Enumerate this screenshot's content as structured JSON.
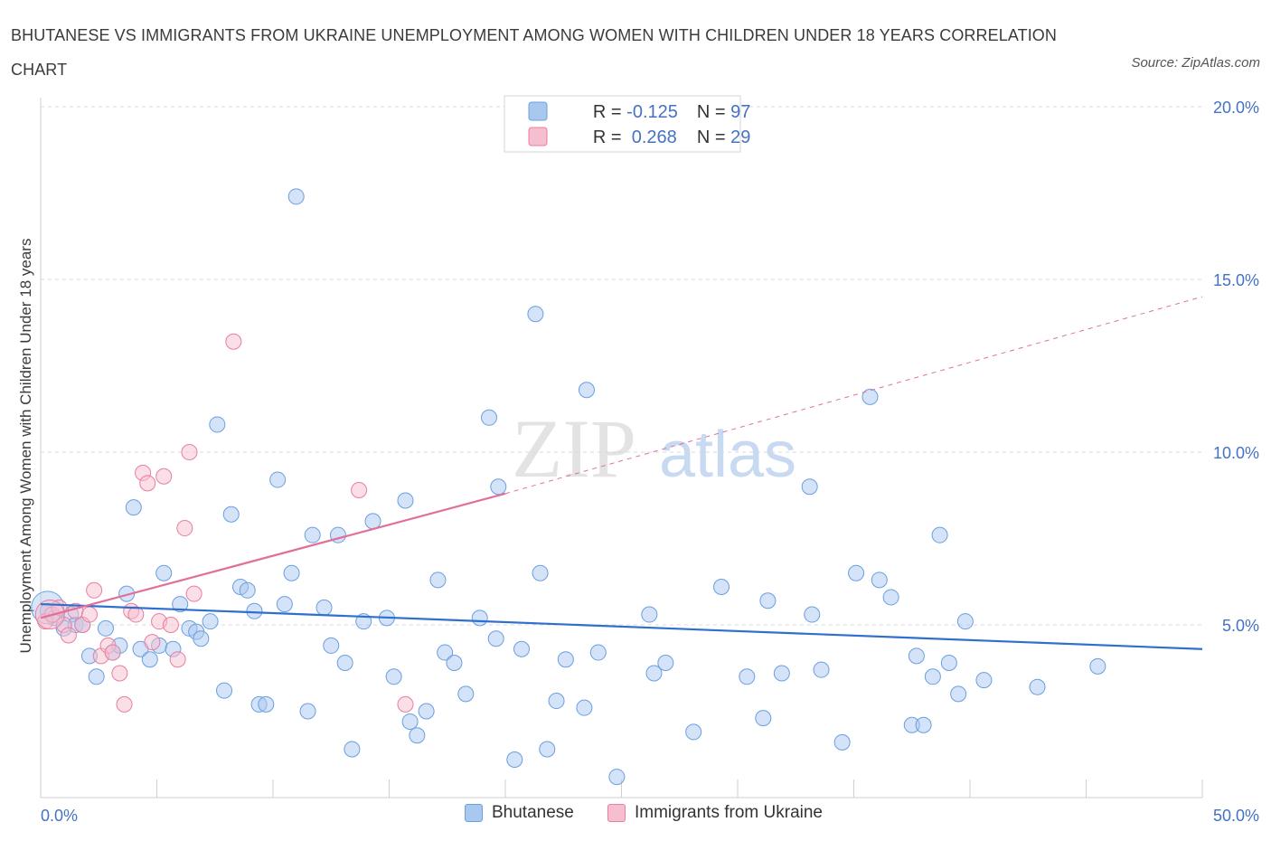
{
  "title": "BHUTANESE VS IMMIGRANTS FROM UKRAINE UNEMPLOYMENT AMONG WOMEN WITH CHILDREN UNDER 18 YEARS CORRELATION CHART",
  "source": "Source: ZipAtlas.com",
  "colors": {
    "blue_fill": "#a9c8f0",
    "blue_stroke": "#6a9fe0",
    "blue_line": "#2f6fce",
    "pink_fill": "#f6bfd0",
    "pink_stroke": "#e87ea0",
    "pink_line": "#e0709a",
    "tick_text": "#4472c4",
    "grid": "#d9d9d9"
  },
  "legend": {
    "rows": [
      {
        "r_label": "R = ",
        "r_value": "-0.125",
        "n_label": "N = ",
        "n_value": "97"
      },
      {
        "r_label": "R = ",
        "r_value": " 0.268",
        "n_label": "N = ",
        "n_value": "29"
      }
    ]
  },
  "bottom_legend": [
    "Bhutanese",
    "Immigrants from Ukraine"
  ],
  "watermark": {
    "zip": "ZIP",
    "atlas": "atlas"
  },
  "chart_data": {
    "type": "scatter",
    "title": "BHUTANESE VS IMMIGRANTS FROM UKRAINE UNEMPLOYMENT AMONG WOMEN WITH CHILDREN UNDER 18 YEARS CORRELATION CHART",
    "xlabel": "",
    "ylabel": "Unemployment Among Women with Children Under 18 years",
    "xlim": [
      0,
      50
    ],
    "ylim": [
      0,
      20
    ],
    "x_tick_labels": [
      "0.0%",
      "50.0%"
    ],
    "y_ticks": [
      5,
      10,
      15,
      20
    ],
    "y_tick_labels": [
      "5.0%",
      "10.0%",
      "15.0%",
      "20.0%"
    ],
    "grid": true,
    "legend_position": "top-center",
    "series": [
      {
        "name": "Bhutanese",
        "r": -0.125,
        "n": 97,
        "trend": {
          "x": [
            0,
            50
          ],
          "y": [
            5.6,
            4.3
          ],
          "dashed_extension": false
        },
        "points": [
          [
            0.3,
            5.4
          ],
          [
            0.6,
            5.2
          ],
          [
            1.0,
            4.9
          ],
          [
            1.3,
            5.3
          ],
          [
            1.5,
            5.0
          ],
          [
            1.8,
            5.0
          ],
          [
            2.1,
            4.1
          ],
          [
            2.4,
            3.5
          ],
          [
            2.8,
            4.9
          ],
          [
            3.1,
            4.2
          ],
          [
            3.4,
            4.4
          ],
          [
            3.7,
            5.9
          ],
          [
            4.0,
            8.4
          ],
          [
            4.3,
            4.3
          ],
          [
            4.7,
            4.0
          ],
          [
            5.1,
            4.4
          ],
          [
            5.3,
            6.5
          ],
          [
            5.7,
            4.3
          ],
          [
            6.0,
            5.6
          ],
          [
            6.4,
            4.9
          ],
          [
            6.7,
            4.8
          ],
          [
            6.9,
            4.6
          ],
          [
            7.3,
            5.1
          ],
          [
            7.6,
            10.8
          ],
          [
            7.9,
            3.1
          ],
          [
            8.2,
            8.2
          ],
          [
            8.6,
            6.1
          ],
          [
            8.9,
            6.0
          ],
          [
            9.2,
            5.4
          ],
          [
            9.4,
            2.7
          ],
          [
            9.7,
            2.7
          ],
          [
            10.2,
            9.2
          ],
          [
            10.5,
            5.6
          ],
          [
            10.8,
            6.5
          ],
          [
            11.0,
            17.4
          ],
          [
            11.5,
            2.5
          ],
          [
            11.7,
            7.6
          ],
          [
            12.2,
            5.5
          ],
          [
            12.5,
            4.4
          ],
          [
            12.8,
            7.6
          ],
          [
            13.1,
            3.9
          ],
          [
            13.4,
            1.4
          ],
          [
            13.9,
            5.1
          ],
          [
            14.3,
            8.0
          ],
          [
            14.9,
            5.2
          ],
          [
            15.2,
            3.5
          ],
          [
            15.7,
            8.6
          ],
          [
            15.9,
            2.2
          ],
          [
            16.2,
            1.8
          ],
          [
            16.6,
            2.5
          ],
          [
            17.1,
            6.3
          ],
          [
            17.4,
            4.2
          ],
          [
            17.8,
            3.9
          ],
          [
            18.3,
            3.0
          ],
          [
            18.9,
            5.2
          ],
          [
            19.3,
            11.0
          ],
          [
            19.6,
            4.6
          ],
          [
            19.7,
            9.0
          ],
          [
            20.4,
            1.1
          ],
          [
            20.7,
            4.3
          ],
          [
            21.3,
            14.0
          ],
          [
            21.5,
            6.5
          ],
          [
            21.8,
            1.4
          ],
          [
            22.2,
            2.8
          ],
          [
            22.6,
            4.0
          ],
          [
            23.4,
            2.6
          ],
          [
            23.5,
            11.8
          ],
          [
            24.0,
            4.2
          ],
          [
            24.8,
            0.6
          ],
          [
            26.2,
            5.3
          ],
          [
            26.4,
            3.6
          ],
          [
            26.9,
            3.9
          ],
          [
            28.1,
            1.9
          ],
          [
            29.3,
            6.1
          ],
          [
            30.4,
            3.5
          ],
          [
            31.1,
            2.3
          ],
          [
            31.3,
            5.7
          ],
          [
            31.9,
            3.6
          ],
          [
            33.1,
            9.0
          ],
          [
            33.2,
            5.3
          ],
          [
            33.6,
            3.7
          ],
          [
            34.5,
            1.6
          ],
          [
            35.1,
            6.5
          ],
          [
            35.7,
            11.6
          ],
          [
            36.1,
            6.3
          ],
          [
            36.6,
            5.8
          ],
          [
            37.5,
            2.1
          ],
          [
            37.7,
            4.1
          ],
          [
            38.0,
            2.1
          ],
          [
            38.4,
            3.5
          ],
          [
            38.7,
            7.6
          ],
          [
            39.1,
            3.9
          ],
          [
            39.5,
            3.0
          ],
          [
            39.8,
            5.1
          ],
          [
            40.6,
            3.4
          ],
          [
            42.9,
            3.2
          ],
          [
            45.5,
            3.8
          ]
        ]
      },
      {
        "name": "Immigrants from Ukraine",
        "r": 0.268,
        "n": 29,
        "trend": {
          "x": [
            0,
            20
          ],
          "y": [
            5.2,
            8.8
          ],
          "dashed_extension_to": [
            50,
            14.5
          ]
        },
        "points": [
          [
            0.2,
            5.1
          ],
          [
            0.5,
            5.3
          ],
          [
            0.8,
            5.5
          ],
          [
            1.0,
            5.0
          ],
          [
            1.2,
            4.7
          ],
          [
            1.5,
            5.4
          ],
          [
            1.8,
            5.0
          ],
          [
            2.1,
            5.3
          ],
          [
            2.3,
            6.0
          ],
          [
            2.6,
            4.1
          ],
          [
            2.9,
            4.4
          ],
          [
            3.1,
            4.2
          ],
          [
            3.4,
            3.6
          ],
          [
            3.6,
            2.7
          ],
          [
            3.9,
            5.4
          ],
          [
            4.1,
            5.3
          ],
          [
            4.4,
            9.4
          ],
          [
            4.6,
            9.1
          ],
          [
            4.8,
            4.5
          ],
          [
            5.1,
            5.1
          ],
          [
            5.3,
            9.3
          ],
          [
            5.6,
            5.0
          ],
          [
            5.9,
            4.0
          ],
          [
            6.2,
            7.8
          ],
          [
            6.4,
            10.0
          ],
          [
            6.6,
            5.9
          ],
          [
            8.3,
            13.2
          ],
          [
            13.7,
            8.9
          ],
          [
            15.7,
            2.7
          ]
        ]
      }
    ]
  }
}
